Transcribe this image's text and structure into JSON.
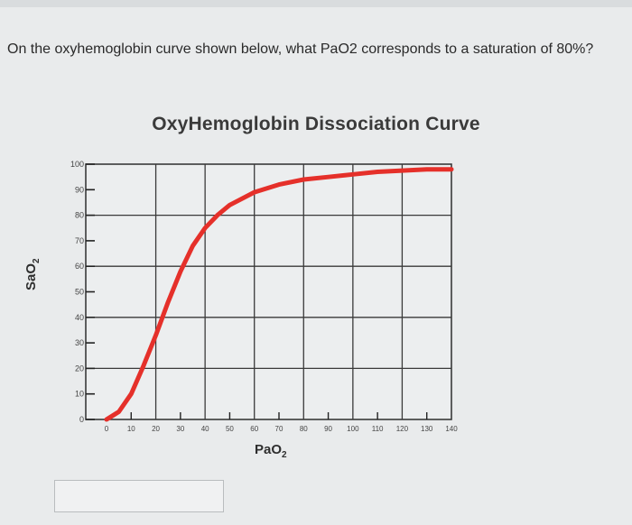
{
  "question": {
    "text": "On the oxyhemoglobin curve shown below, what PaO2 corresponds to a saturation of 80%?"
  },
  "answer_input": {
    "value": ""
  },
  "colors": {
    "curve": "#e5302a",
    "grid": "#3a3a3a",
    "background": "#e9ebec"
  },
  "chart_data": {
    "type": "line",
    "title": "OxyHemoglobin Dissociation Curve",
    "xlabel": "PaO2",
    "ylabel": "SaO2",
    "xlim": [
      0,
      140
    ],
    "ylim": [
      0,
      100
    ],
    "xticks": [
      0,
      10,
      20,
      30,
      40,
      50,
      60,
      70,
      80,
      90,
      100,
      110,
      120,
      130,
      140
    ],
    "yticks": [
      0,
      10,
      20,
      30,
      40,
      50,
      60,
      70,
      80,
      90,
      100
    ],
    "grid": true,
    "series": [
      {
        "x": [
          0,
          5,
          10,
          15,
          20,
          25,
          30,
          35,
          40,
          45,
          50,
          60,
          70,
          80,
          90,
          100,
          110,
          120,
          130,
          140
        ],
        "y": [
          0,
          3,
          10,
          21,
          33,
          46,
          58,
          68,
          75,
          80,
          84,
          89,
          92,
          94,
          95,
          96,
          97,
          97.5,
          98,
          98
        ]
      }
    ]
  }
}
